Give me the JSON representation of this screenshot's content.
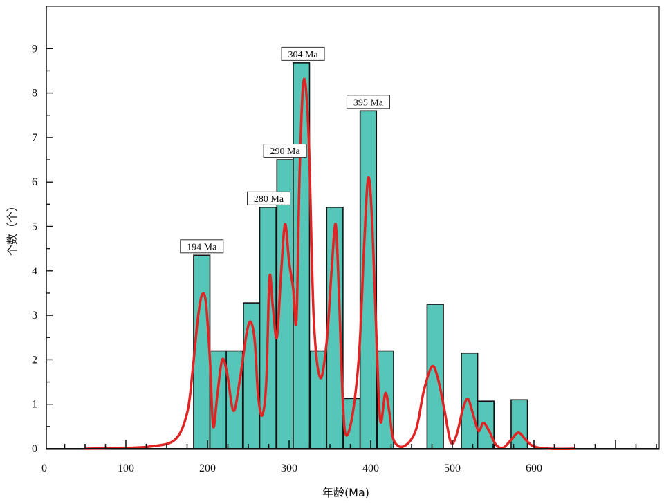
{
  "chart_data": {
    "type": "histogram",
    "xlabel": "年龄(Ma)",
    "ylabel": "个数（个）",
    "xlim": [
      0,
      750
    ],
    "ylim": [
      0,
      10
    ],
    "x_ticks": [
      0,
      100,
      200,
      300,
      400,
      500,
      600
    ],
    "y_ticks": [
      0,
      1,
      2,
      3,
      4,
      5,
      6,
      7,
      8,
      9
    ],
    "bin_width": 20,
    "bars": [
      {
        "start": 183,
        "value": 4.35
      },
      {
        "start": 203,
        "value": 2.2
      },
      {
        "start": 223,
        "value": 2.2
      },
      {
        "start": 244,
        "value": 3.28
      },
      {
        "start": 264,
        "value": 5.43
      },
      {
        "start": 285,
        "value": 6.5
      },
      {
        "start": 305,
        "value": 8.68
      },
      {
        "start": 326,
        "value": 2.2
      },
      {
        "start": 346,
        "value": 5.43
      },
      {
        "start": 367,
        "value": 1.13
      },
      {
        "start": 387,
        "value": 7.6
      },
      {
        "start": 408,
        "value": 2.2
      },
      {
        "start": 469,
        "value": 3.25
      },
      {
        "start": 511,
        "value": 2.15
      },
      {
        "start": 531,
        "value": 1.07
      },
      {
        "start": 572,
        "value": 1.1
      }
    ],
    "density_curve": [
      [
        50,
        0
      ],
      [
        100,
        0.02
      ],
      [
        130,
        0.05
      ],
      [
        160,
        0.2
      ],
      [
        175,
        0.8
      ],
      [
        182,
        1.8
      ],
      [
        188,
        2.9
      ],
      [
        193,
        3.45
      ],
      [
        198,
        3.3
      ],
      [
        203,
        2.0
      ],
      [
        207,
        0.5
      ],
      [
        212,
        1.2
      ],
      [
        218,
        2.0
      ],
      [
        224,
        1.7
      ],
      [
        232,
        0.85
      ],
      [
        240,
        1.6
      ],
      [
        248,
        2.6
      ],
      [
        253,
        2.85
      ],
      [
        258,
        2.4
      ],
      [
        262,
        1.2
      ],
      [
        267,
        0.75
      ],
      [
        272,
        1.5
      ],
      [
        276,
        3.85
      ],
      [
        280,
        3.2
      ],
      [
        285,
        2.5
      ],
      [
        290,
        3.9
      ],
      [
        295,
        5.05
      ],
      [
        300,
        4.2
      ],
      [
        305,
        3.6
      ],
      [
        309,
        2.9
      ],
      [
        313,
        6.3
      ],
      [
        318,
        8.3
      ],
      [
        324,
        7.0
      ],
      [
        330,
        3.0
      ],
      [
        338,
        1.6
      ],
      [
        346,
        2.4
      ],
      [
        352,
        4.0
      ],
      [
        357,
        5.05
      ],
      [
        361,
        3.5
      ],
      [
        366,
        1.0
      ],
      [
        370,
        0.3
      ],
      [
        378,
        0.8
      ],
      [
        386,
        2.2
      ],
      [
        392,
        4.6
      ],
      [
        397,
        6.1
      ],
      [
        402,
        5.0
      ],
      [
        408,
        2.0
      ],
      [
        412,
        0.6
      ],
      [
        418,
        1.25
      ],
      [
        423,
        0.8
      ],
      [
        428,
        0.2
      ],
      [
        440,
        0.05
      ],
      [
        455,
        0.4
      ],
      [
        465,
        1.3
      ],
      [
        475,
        1.85
      ],
      [
        482,
        1.6
      ],
      [
        490,
        0.9
      ],
      [
        498,
        0.15
      ],
      [
        505,
        0.3
      ],
      [
        513,
        0.9
      ],
      [
        519,
        1.12
      ],
      [
        525,
        0.8
      ],
      [
        532,
        0.4
      ],
      [
        538,
        0.58
      ],
      [
        545,
        0.4
      ],
      [
        553,
        0.1
      ],
      [
        562,
        0.02
      ],
      [
        572,
        0.2
      ],
      [
        581,
        0.36
      ],
      [
        590,
        0.2
      ],
      [
        600,
        0.05
      ],
      [
        620,
        0.0
      ],
      [
        650,
        0.0
      ]
    ],
    "annotations": [
      {
        "label": "194 Ma",
        "x": 193,
        "y": 4.35
      },
      {
        "label": "280 Ma",
        "x": 275,
        "y": 5.43
      },
      {
        "label": "290 Ma",
        "x": 295,
        "y": 6.5
      },
      {
        "label": "304 Ma",
        "x": 317,
        "y": 8.68
      },
      {
        "label": "395 Ma",
        "x": 397,
        "y": 7.6
      }
    ],
    "colors": {
      "bar_fill": "#56c6b8",
      "bar_stroke": "#111111",
      "curve": "#e02424"
    }
  }
}
